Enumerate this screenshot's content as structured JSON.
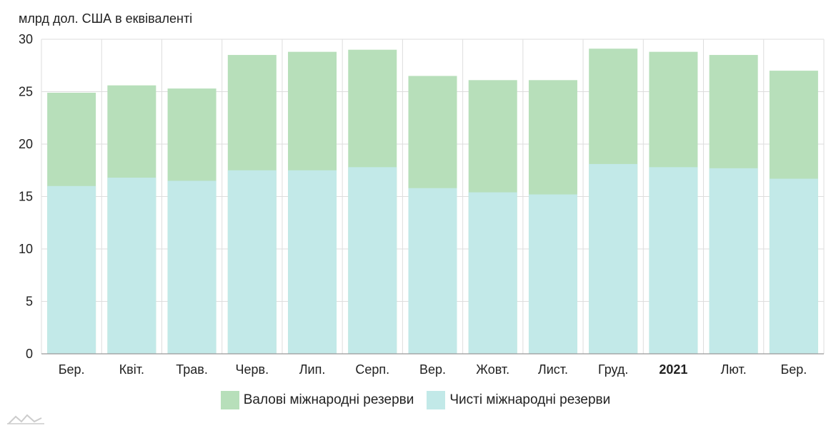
{
  "unit_label": "млрд дол. США в еквіваленті",
  "colors": {
    "gross": "#b7dfba",
    "net": "#c2e9e8",
    "grid": "#dddddd",
    "axis": "#999999"
  },
  "chart_data": {
    "type": "bar",
    "stacked": "overlay",
    "categories": [
      "Бер.",
      "Квіт.",
      "Трав.",
      "Черв.",
      "Лип.",
      "Серп.",
      "Вер.",
      "Жовт.",
      "Лист.",
      "Груд.",
      "2021",
      "Лют.",
      "Бер."
    ],
    "bold_categories": [
      "2021"
    ],
    "series": [
      {
        "name": "Валові міжнародні резерви",
        "values": [
          24.9,
          25.6,
          25.3,
          28.5,
          28.8,
          29.0,
          26.5,
          26.1,
          26.1,
          29.1,
          28.8,
          28.5,
          27.0
        ]
      },
      {
        "name": "Чисті міжнародні резерви",
        "values": [
          16.0,
          16.8,
          16.5,
          17.5,
          17.5,
          17.8,
          15.8,
          15.4,
          15.2,
          18.1,
          17.8,
          17.7,
          16.7
        ]
      }
    ],
    "ylim": [
      0,
      30
    ],
    "yticks": [
      0,
      5,
      10,
      15,
      20,
      25,
      30
    ],
    "grid": true,
    "legend_position": "bottom-center"
  }
}
